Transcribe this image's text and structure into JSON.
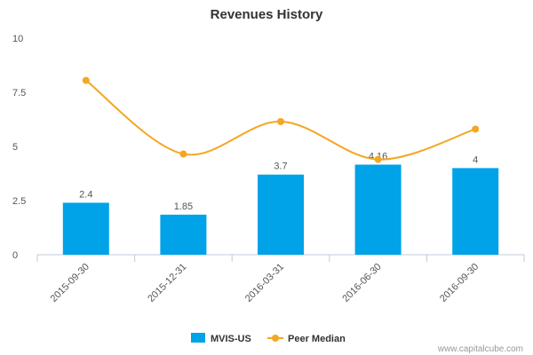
{
  "chart_data": {
    "type": "bar",
    "title": "Revenues History",
    "categories": [
      "2015-09-30",
      "2015-12-31",
      "2016-03-31",
      "2016-06-30",
      "2016-09-30"
    ],
    "series": [
      {
        "name": "MVIS-US",
        "type": "bar",
        "values": [
          2.4,
          1.85,
          3.7,
          4.16,
          4.0
        ],
        "labels": [
          "2.4",
          "1.85",
          "3.7",
          "4.16",
          "4"
        ],
        "color": "#00a2e8"
      },
      {
        "name": "Peer Median",
        "type": "line",
        "smooth": true,
        "values": [
          8.05,
          4.65,
          6.15,
          4.4,
          5.8
        ],
        "color": "#f5a623"
      }
    ],
    "ylim": [
      0,
      10
    ],
    "yticks": [
      "0",
      "2.5",
      "5",
      "7.5",
      "10"
    ],
    "xlabel": "",
    "ylabel": "",
    "grid": false,
    "legend": "bottom-center"
  },
  "watermark": "www.capitalcube.com"
}
